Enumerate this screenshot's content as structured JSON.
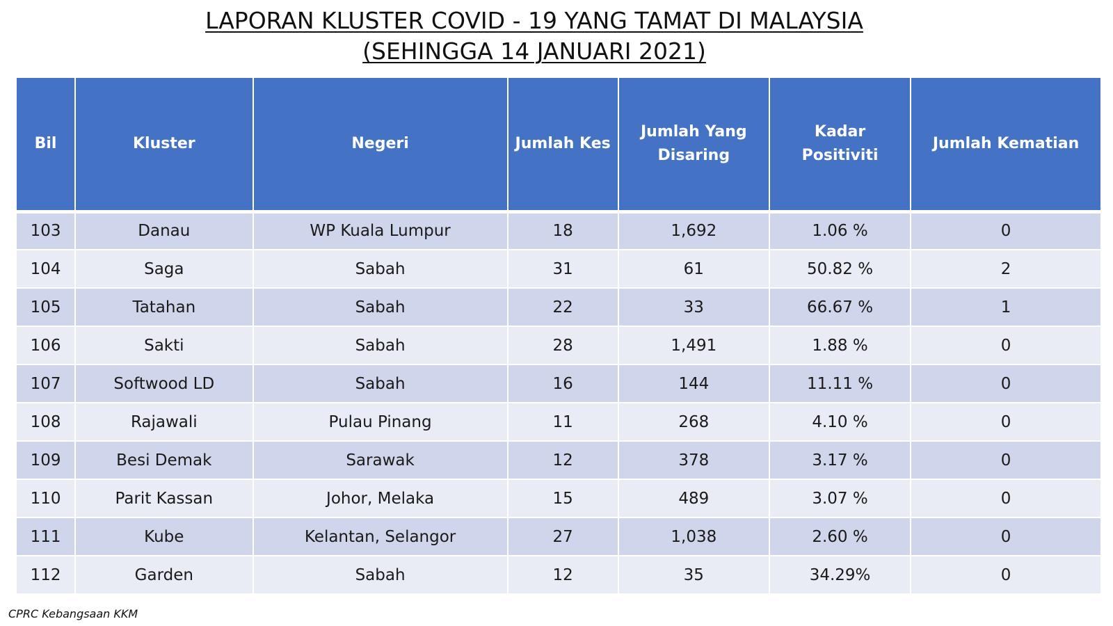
{
  "title": {
    "line1": "LAPORAN KLUSTER COVID - 19 YANG TAMAT DI MALAYSIA",
    "line2": "(SEHINGGA 14 JANUARI 2021)"
  },
  "table": {
    "headers": {
      "bil": "Bil",
      "kluster": "Kluster",
      "negeri": "Negeri",
      "jumlah_kes": "Jumlah Kes",
      "jumlah_disaring": "Jumlah Yang Disaring",
      "kadar_positiviti": "Kadar Positiviti",
      "jumlah_kematian": "Jumlah Kematian"
    },
    "rows": [
      {
        "bil": "103",
        "kluster": "Danau",
        "negeri": "WP Kuala Lumpur",
        "kes": "18",
        "disaring": "1,692",
        "positiviti": "1.06 %",
        "kematian": "0"
      },
      {
        "bil": "104",
        "kluster": "Saga",
        "negeri": "Sabah",
        "kes": "31",
        "disaring": "61",
        "positiviti": "50.82 %",
        "kematian": "2"
      },
      {
        "bil": "105",
        "kluster": "Tatahan",
        "negeri": "Sabah",
        "kes": "22",
        "disaring": "33",
        "positiviti": "66.67 %",
        "kematian": "1"
      },
      {
        "bil": "106",
        "kluster": "Sakti",
        "negeri": "Sabah",
        "kes": "28",
        "disaring": "1,491",
        "positiviti": "1.88 %",
        "kematian": "0"
      },
      {
        "bil": "107",
        "kluster": "Softwood LD",
        "negeri": "Sabah",
        "kes": "16",
        "disaring": "144",
        "positiviti": "11.11 %",
        "kematian": "0"
      },
      {
        "bil": "108",
        "kluster": "Rajawali",
        "negeri": "Pulau Pinang",
        "kes": "11",
        "disaring": "268",
        "positiviti": "4.10 %",
        "kematian": "0"
      },
      {
        "bil": "109",
        "kluster": "Besi Demak",
        "negeri": "Sarawak",
        "kes": "12",
        "disaring": "378",
        "positiviti": "3.17 %",
        "kematian": "0"
      },
      {
        "bil": "110",
        "kluster": "Parit Kassan",
        "negeri": "Johor, Melaka",
        "kes": "15",
        "disaring": "489",
        "positiviti": "3.07 %",
        "kematian": "0"
      },
      {
        "bil": "111",
        "kluster": "Kube",
        "negeri": "Kelantan, Selangor",
        "kes": "27",
        "disaring": "1,038",
        "positiviti": "2.60 %",
        "kematian": "0"
      },
      {
        "bil": "112",
        "kluster": "Garden",
        "negeri": "Sabah",
        "kes": "12",
        "disaring": "35",
        "positiviti": "34.29%",
        "kematian": "0"
      }
    ]
  },
  "source": "CPRC Kebangsaan KKM",
  "colors": {
    "header_bg": "#4472c4",
    "row_dark": "#cfd5ea",
    "row_light": "#e9ebf5"
  }
}
